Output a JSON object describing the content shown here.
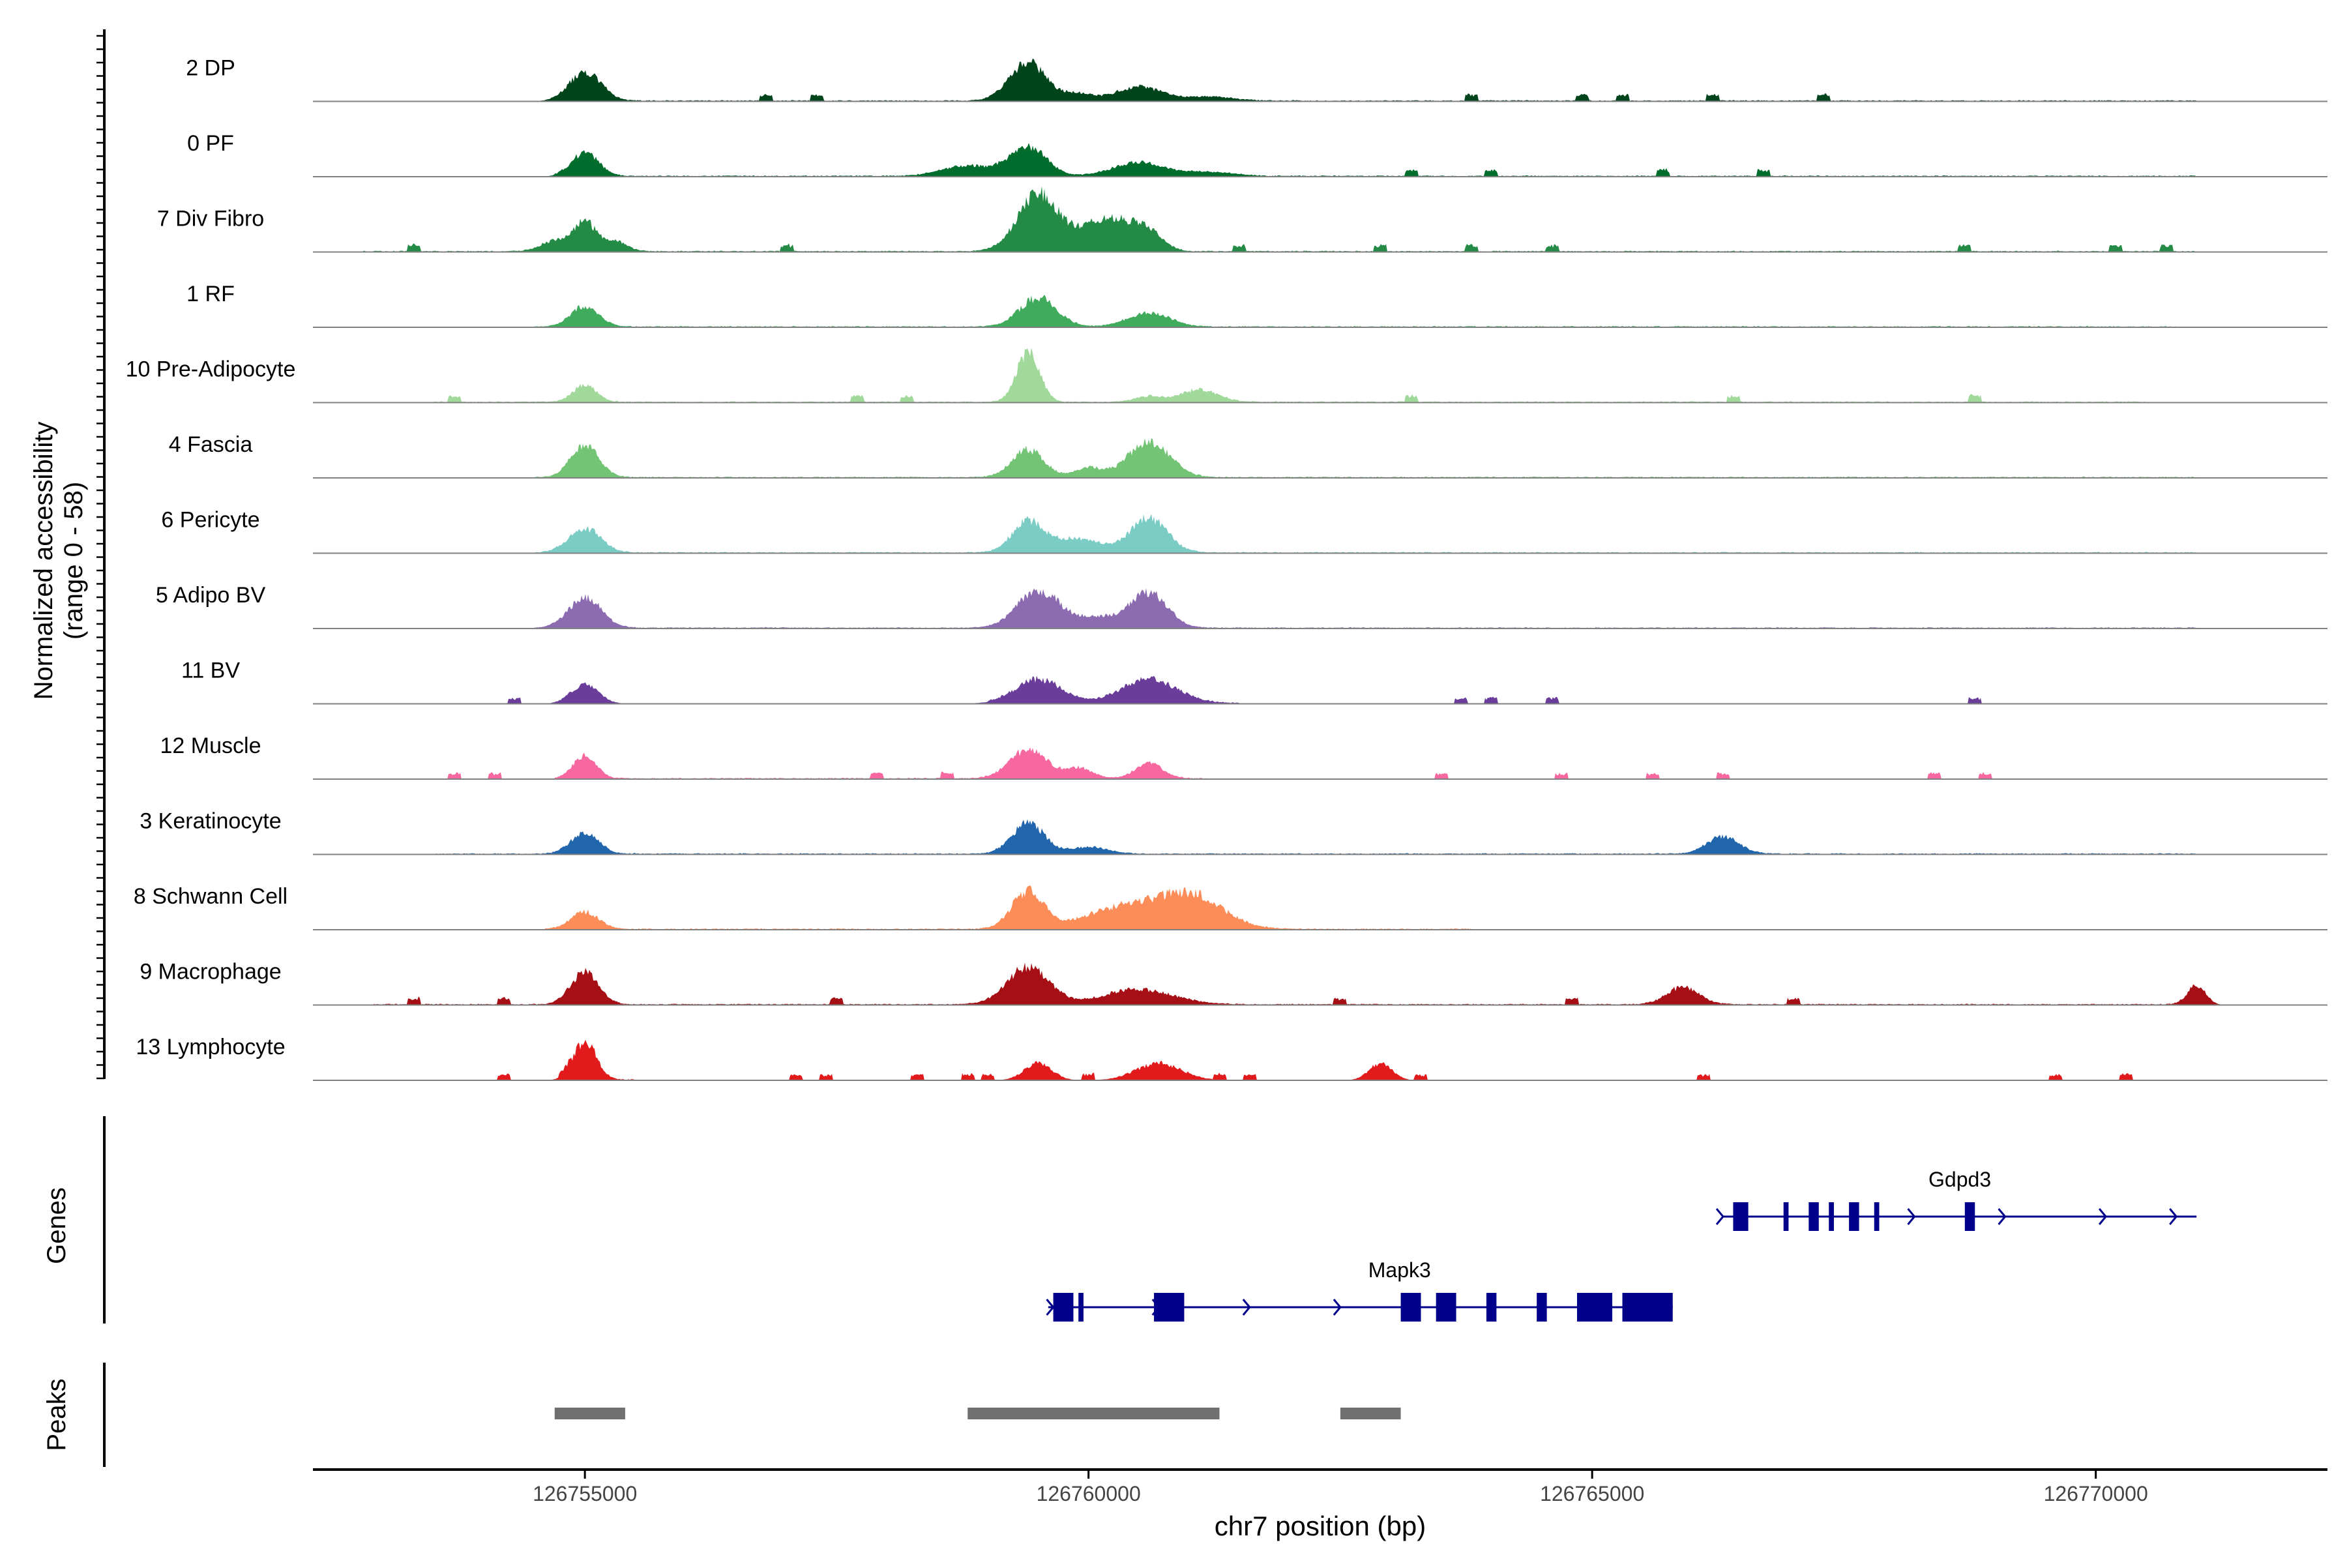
{
  "chart_data": {
    "type": "area",
    "title": "",
    "ylabel_line1": "Normalized accessibility",
    "ylabel_line2": "(range 0 - 58)",
    "xlabel": "chr7 position (bp)",
    "xlim": [
      126752300,
      126772300
    ],
    "xticks": [
      {
        "value": 126755000,
        "label": "126755000"
      },
      {
        "value": 126760000,
        "label": "126760000"
      },
      {
        "value": 126765000,
        "label": "126765000"
      },
      {
        "value": 126770000,
        "label": "126770000"
      }
    ],
    "track_range": [
      0,
      58
    ],
    "tracks": [
      {
        "name": "2 DP",
        "color": "#00441b",
        "peaks": [
          [
            126755000,
            0.42,
            70
          ],
          [
            126759400,
            0.55,
            80
          ],
          [
            126760500,
            0.2,
            100
          ],
          [
            126759900,
            0.1,
            60
          ],
          [
            126761200,
            0.06,
            100
          ]
        ],
        "base": [
          126755000,
          126771000
        ],
        "blips": [
          126756800,
          126757300,
          126763800,
          126764900,
          126765300,
          126766200,
          126767300
        ]
      },
      {
        "name": "0 PF",
        "color": "#006d2c",
        "peaks": [
          [
            126755000,
            0.33,
            60
          ],
          [
            126759400,
            0.42,
            80
          ],
          [
            126758800,
            0.15,
            110
          ],
          [
            126760500,
            0.2,
            110
          ],
          [
            126761200,
            0.06,
            100
          ]
        ],
        "base": [
          126754700,
          126771000
        ],
        "blips": [
          126763200,
          126764000,
          126765700,
          126766700
        ]
      },
      {
        "name": "7 Div Fibro",
        "color": "#238b45",
        "peaks": [
          [
            126755000,
            0.42,
            50
          ],
          [
            126759500,
            0.82,
            90
          ],
          [
            126760200,
            0.5,
            110
          ],
          [
            126760600,
            0.22,
            60
          ],
          [
            126754700,
            0.15,
            60
          ],
          [
            126755300,
            0.15,
            50
          ]
        ],
        "base": [
          126752800,
          126771000
        ],
        "blips": [
          126753300,
          126757000,
          126761500,
          126762900,
          126763800,
          126764600,
          126768700,
          126770200,
          126770700
        ]
      },
      {
        "name": "1 RF",
        "color": "#41ab5d",
        "peaks": [
          [
            126755000,
            0.3,
            60
          ],
          [
            126759500,
            0.42,
            80
          ],
          [
            126760600,
            0.2,
            90
          ]
        ],
        "base": [
          126754500,
          126770800
        ],
        "blips": []
      },
      {
        "name": "10 Pre-Adipocyte",
        "color": "#a1d99b",
        "peaks": [
          [
            126755000,
            0.25,
            50
          ],
          [
            126759400,
            0.72,
            50
          ],
          [
            126761100,
            0.18,
            80
          ],
          [
            126760600,
            0.08,
            60
          ]
        ],
        "base": [
          126753500,
          126770500
        ],
        "blips": [
          126753700,
          126757700,
          126758200,
          126763200,
          126766400,
          126768800
        ]
      },
      {
        "name": "4 Fascia",
        "color": "#74c476",
        "peaks": [
          [
            126755000,
            0.48,
            60
          ],
          [
            126759400,
            0.4,
            70
          ],
          [
            126760600,
            0.52,
            90
          ],
          [
            126760000,
            0.14,
            60
          ]
        ],
        "base": [
          126754500,
          126771000
        ],
        "blips": []
      },
      {
        "name": "6 Pericyte",
        "color": "#7bccc4",
        "peaks": [
          [
            126755000,
            0.35,
            70
          ],
          [
            126759400,
            0.45,
            70
          ],
          [
            126760600,
            0.5,
            80
          ],
          [
            126759900,
            0.2,
            100
          ]
        ],
        "base": [
          126754500,
          126771000
        ],
        "blips": []
      },
      {
        "name": "5 Adipo BV",
        "color": "#8c6bb1",
        "peaks": [
          [
            126755000,
            0.45,
            70
          ],
          [
            126759500,
            0.55,
            90
          ],
          [
            126760600,
            0.5,
            80
          ],
          [
            126760100,
            0.15,
            100
          ]
        ],
        "base": [
          126754500,
          126771000
        ],
        "blips": []
      },
      {
        "name": "11 BV",
        "color": "#6a3d9a",
        "peaks": [
          [
            126755000,
            0.28,
            60
          ],
          [
            126759500,
            0.35,
            100
          ],
          [
            126760600,
            0.35,
            120
          ]
        ],
        "base": [
          126759000,
          126761500
        ],
        "blips": [
          126754300,
          126763700,
          126764000,
          126764600,
          126768800
        ]
      },
      {
        "name": "12 Muscle",
        "color": "#f768a1",
        "peaks": [
          [
            126755000,
            0.33,
            50
          ],
          [
            126759400,
            0.42,
            80
          ],
          [
            126760600,
            0.22,
            60
          ],
          [
            126759900,
            0.15,
            60
          ]
        ],
        "base": [
          126754700,
          126761200
        ],
        "blips": [
          126753700,
          126754100,
          126757900,
          126758600,
          126763500,
          126764700,
          126765600,
          126766300,
          126768400,
          126768900
        ]
      },
      {
        "name": "3 Keratinocyte",
        "color": "#2166ac",
        "peaks": [
          [
            126755000,
            0.3,
            60
          ],
          [
            126759400,
            0.45,
            70
          ],
          [
            126766300,
            0.25,
            70
          ],
          [
            126760000,
            0.1,
            80
          ]
        ],
        "base": [
          126753500,
          126771000
        ],
        "blips": []
      },
      {
        "name": "8 Schwann Cell",
        "color": "#fc8d59",
        "peaks": [
          [
            126755000,
            0.25,
            60
          ],
          [
            126759400,
            0.55,
            70
          ],
          [
            126761000,
            0.5,
            140
          ],
          [
            126760300,
            0.3,
            150
          ]
        ],
        "base": [
          126754600,
          126763800
        ],
        "blips": []
      },
      {
        "name": "9 Macrophage",
        "color": "#a50f15",
        "peaks": [
          [
            126755000,
            0.48,
            60
          ],
          [
            126759400,
            0.55,
            90
          ],
          [
            126760500,
            0.22,
            150
          ],
          [
            126765900,
            0.25,
            70
          ],
          [
            126771000,
            0.28,
            40
          ]
        ],
        "base": [
          126752900,
          126771000
        ],
        "blips": [
          126753300,
          126754200,
          126757500,
          126762500,
          126764800,
          126767000
        ]
      },
      {
        "name": "13 Lymphocyte",
        "color": "#e31a1c",
        "peaks": [
          [
            126755000,
            0.55,
            50
          ],
          [
            126759500,
            0.25,
            60
          ],
          [
            126760700,
            0.25,
            100
          ],
          [
            126762900,
            0.25,
            50
          ]
        ],
        "base": [
          126754900,
          126755500
        ],
        "blips": [
          126754200,
          126754800,
          126757100,
          126757400,
          126758300,
          126758800,
          126759000,
          126760000,
          126761300,
          126761600,
          126763300,
          126766100,
          126769600,
          126770300
        ]
      }
    ],
    "genes_label": "Genes",
    "genes": [
      {
        "name": "Gdpd3",
        "color": "#00008b",
        "start": 126766300,
        "end": 126771000,
        "row": 0,
        "exons": [
          [
            126766400,
            126766550
          ],
          [
            126766900,
            126766950
          ],
          [
            126767150,
            126767250
          ],
          [
            126767350,
            126767400
          ],
          [
            126767550,
            126767650
          ],
          [
            126767800,
            126767850
          ],
          [
            126768700,
            126768800
          ]
        ],
        "arrows": [
          126766300,
          126768200,
          126769100,
          126770100,
          126770800
        ]
      },
      {
        "name": "Mapk3",
        "color": "#00008b",
        "start": 126759600,
        "end": 126765800,
        "row": 1,
        "exons": [
          [
            126759650,
            126759850
          ],
          [
            126759900,
            126759950
          ],
          [
            126760650,
            126760950
          ],
          [
            126763100,
            126763300
          ],
          [
            126763450,
            126763650
          ],
          [
            126763950,
            126764050
          ],
          [
            126764450,
            126764550
          ],
          [
            126764850,
            126765200
          ],
          [
            126765300,
            126765800
          ]
        ],
        "arrows": [
          126759650,
          126760700,
          126761600,
          126762500
        ]
      }
    ],
    "peaks_label": "Peaks",
    "peak_regions": [
      [
        126754700,
        126755400
      ],
      [
        126758800,
        126761300
      ],
      [
        126762500,
        126763100
      ]
    ]
  }
}
